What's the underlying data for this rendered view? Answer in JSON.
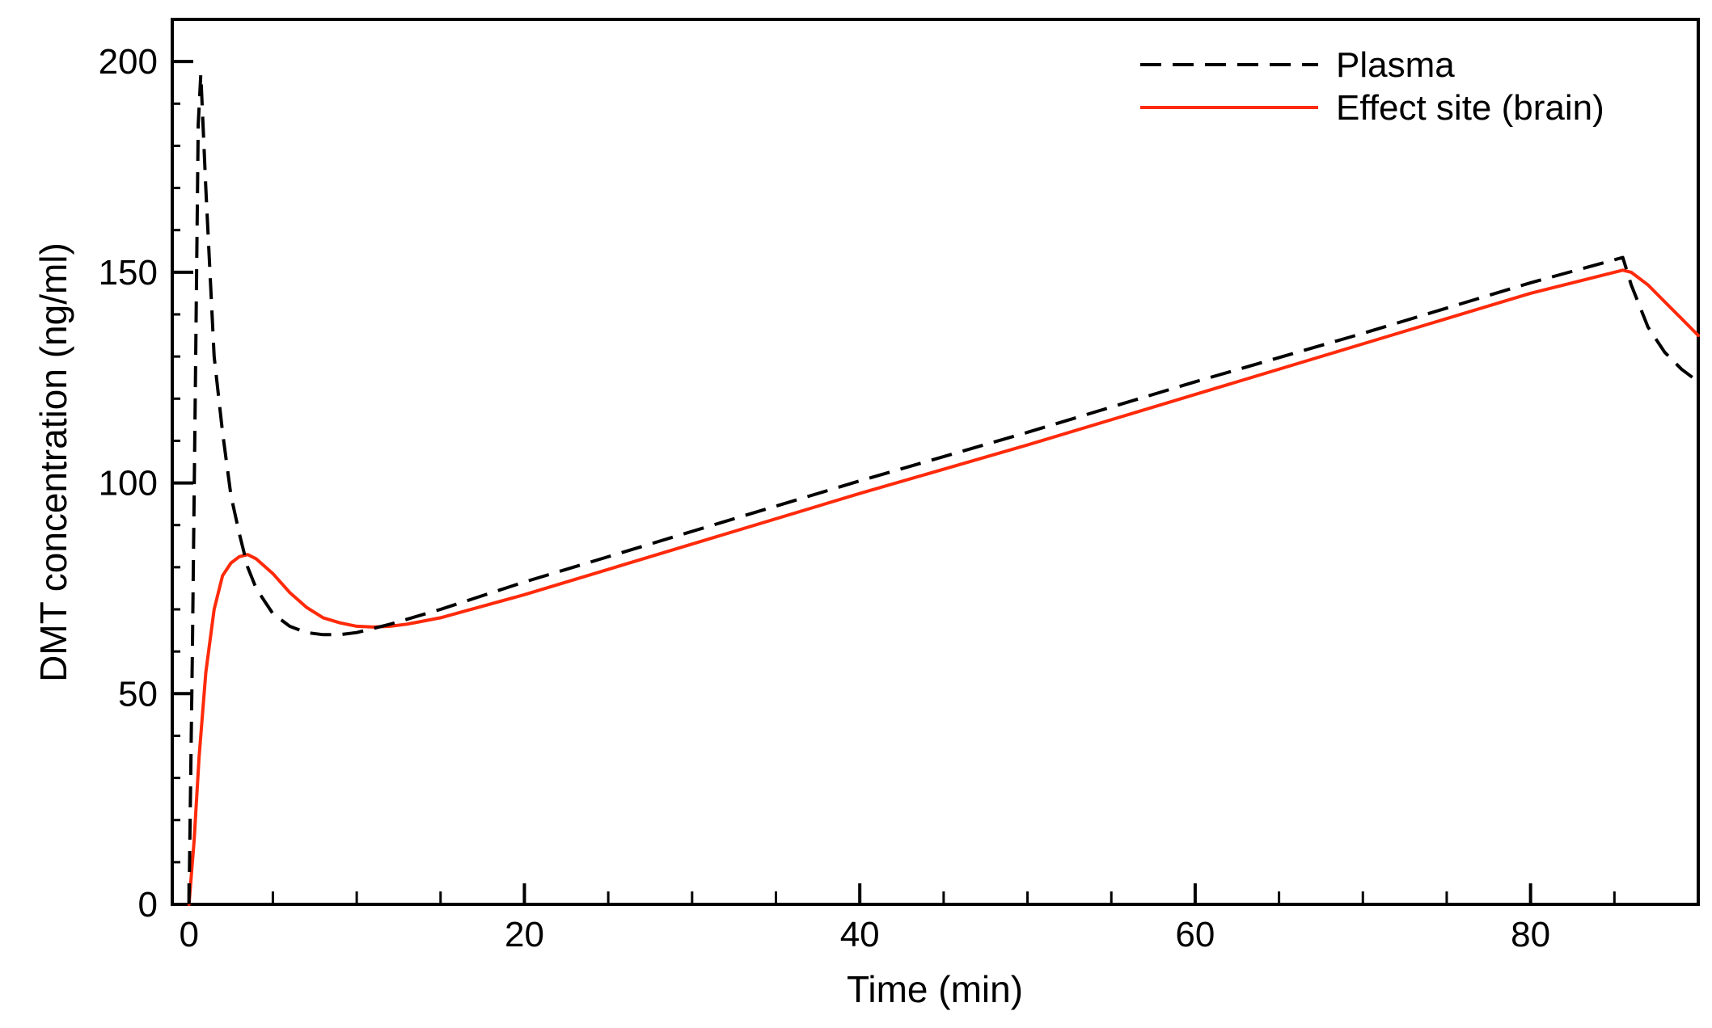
{
  "chart_data": {
    "type": "line",
    "title": "",
    "xlabel": "Time (min)",
    "ylabel": "DMT concentration (ng/ml)",
    "xlim": [
      -1,
      90
    ],
    "ylim": [
      0,
      210
    ],
    "xticks": [
      0,
      20,
      40,
      60,
      80
    ],
    "xtick_labels": [
      "0",
      "20",
      "40",
      "60",
      "80"
    ],
    "x_minor_step": 5,
    "yticks": [
      0,
      50,
      100,
      150,
      200
    ],
    "ytick_labels": [
      "0",
      "50",
      "100",
      "150",
      "200"
    ],
    "y_minor_step": 10,
    "grid": false,
    "legend_position": "top-right",
    "series": [
      {
        "name": "Plasma",
        "color": "#000000",
        "style": "dashed",
        "x": [
          0,
          0.2,
          0.4,
          0.55,
          0.7,
          1,
          1.5,
          2,
          2.5,
          3,
          3.5,
          4,
          4.5,
          5,
          6,
          7,
          8,
          9,
          10,
          11,
          12,
          15,
          20,
          30,
          40,
          50,
          60,
          70,
          80,
          85.5,
          86,
          87,
          88,
          89,
          90
        ],
        "y": [
          0,
          60,
          130,
          185,
          197,
          170,
          130,
          112,
          97,
          88,
          80,
          75,
          72,
          69,
          66,
          64.5,
          64,
          64,
          64.5,
          65.5,
          66.5,
          70,
          76.5,
          88.5,
          100.5,
          112,
          124,
          135.5,
          147.5,
          153.5,
          147,
          137,
          131,
          127,
          124
        ]
      },
      {
        "name": "Effect site (brain)",
        "color": "#ff2a0a",
        "style": "solid",
        "x": [
          0,
          0.3,
          0.6,
          1,
          1.5,
          2,
          2.5,
          3,
          3.5,
          4,
          5,
          6,
          7,
          8,
          9,
          10,
          11,
          12,
          13,
          15,
          20,
          30,
          40,
          50,
          60,
          70,
          80,
          85.5,
          86,
          87,
          88,
          89,
          90
        ],
        "y": [
          0,
          15,
          35,
          55,
          70,
          78,
          81,
          82.5,
          83,
          82,
          78.5,
          74,
          70.5,
          68,
          66.8,
          66,
          65.8,
          66,
          66.5,
          68,
          73.5,
          85.5,
          97.5,
          109,
          121,
          133,
          145,
          150.5,
          150,
          147,
          143,
          139,
          135
        ]
      }
    ]
  }
}
